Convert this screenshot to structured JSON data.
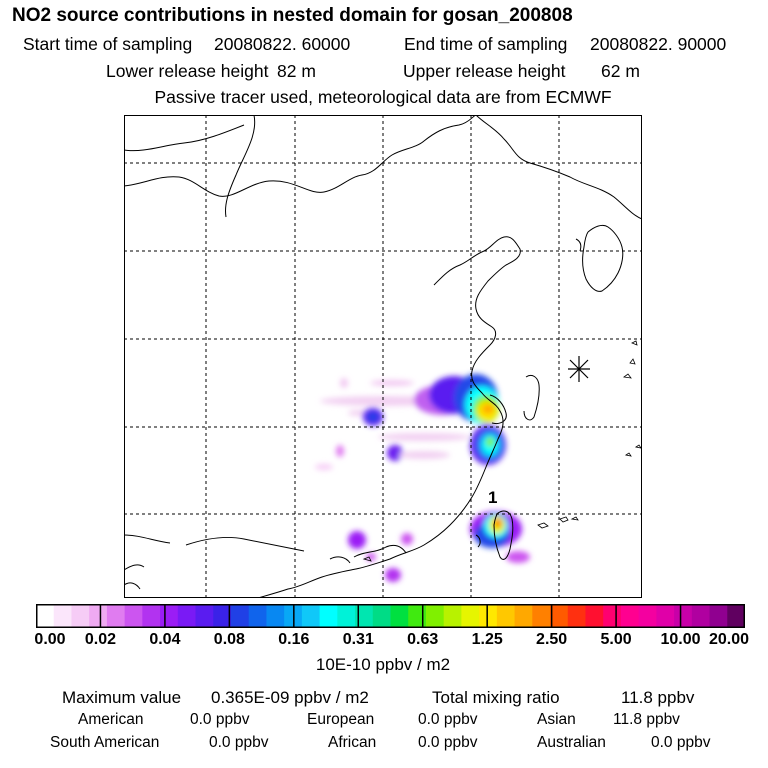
{
  "header": {
    "title": "NO2 source contributions in nested domain for gosan_200808",
    "start_label": "Start time of sampling",
    "start_value": "20080822. 60000",
    "end_label": "End time of sampling",
    "end_value": "20080822. 90000",
    "lower_label": "Lower release height",
    "lower_value": "82 m",
    "upper_label": "Upper release height",
    "upper_value": "62 m",
    "note": "Passive tracer used, meteorological data are from ECMWF"
  },
  "map": {
    "site_marker_label": "1",
    "receptor_symbol": "star-burst-icon",
    "colors": {
      "frame": "#000000",
      "grid": "#000000",
      "coast": "#000000"
    }
  },
  "colorbar": {
    "ticks": [
      "0.00",
      "0.02",
      "0.04",
      "0.08",
      "0.16",
      "0.31",
      "0.63",
      "1.25",
      "2.50",
      "5.00",
      "10.00",
      "20.00"
    ],
    "unit": "10E-10 ppbv / m2",
    "colors": [
      "#ffffff",
      "#fbe6fb",
      "#f6ccf6",
      "#efaaf2",
      "#e07cf0",
      "#cc55f0",
      "#b233f0",
      "#9b1df5",
      "#7a1af5",
      "#5a1cf0",
      "#3a22e8",
      "#2040e6",
      "#1064ec",
      "#0888f2",
      "#08a8f6",
      "#10c8f8",
      "#00ffff",
      "#00f2d8",
      "#00e6b0",
      "#00dc86",
      "#00e040",
      "#40ea10",
      "#80f000",
      "#b8f200",
      "#e6f500",
      "#ffe800",
      "#ffc800",
      "#ffa800",
      "#ff8000",
      "#ff5a00",
      "#ff3010",
      "#ff1030",
      "#ff0070",
      "#ff0090",
      "#f400a0",
      "#e000a8",
      "#c800a8",
      "#b000a0",
      "#900090",
      "#600060"
    ]
  },
  "footer": {
    "max_label": "Maximum value",
    "max_value": "0.365E-09 ppbv / m2",
    "total_label": "Total mixing ratio",
    "total_value": "11.8 ppbv",
    "regions": [
      {
        "name": "American",
        "value": "0.0 ppbv"
      },
      {
        "name": "European",
        "value": "0.0 ppbv"
      },
      {
        "name": "Asian",
        "value": "11.8 ppbv"
      },
      {
        "name": "South American",
        "value": "0.0 ppbv"
      },
      {
        "name": "African",
        "value": "0.0 ppbv"
      },
      {
        "name": "Australian",
        "value": "0.0 ppbv"
      }
    ]
  }
}
